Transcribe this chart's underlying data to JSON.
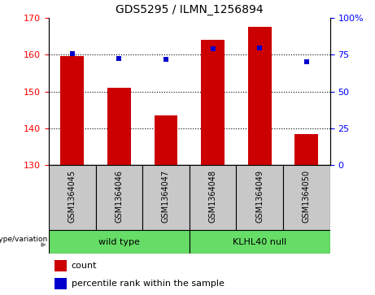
{
  "title": "GDS5295 / ILMN_1256894",
  "samples": [
    "GSM1364045",
    "GSM1364046",
    "GSM1364047",
    "GSM1364048",
    "GSM1364049",
    "GSM1364050"
  ],
  "counts": [
    159.5,
    151.0,
    143.5,
    164.0,
    167.5,
    138.5
  ],
  "percentiles": [
    75.5,
    72.5,
    72.0,
    79.0,
    79.5,
    70.0
  ],
  "ylim_left": [
    130,
    170
  ],
  "ylim_right": [
    0,
    100
  ],
  "yticks_left": [
    130,
    140,
    150,
    160,
    170
  ],
  "yticks_right": [
    0,
    25,
    50,
    75,
    100
  ],
  "bar_color": "#cc0000",
  "dot_color": "#0000cc",
  "bar_bottom": 130,
  "group_box_color": "#c8c8c8",
  "wild_type_label": "wild type",
  "klhl40_label": "KLHL40 null",
  "group_color": "#66dd66",
  "genotype_label": "genotype/variation",
  "legend_count_label": "count",
  "legend_percentile_label": "percentile rank within the sample",
  "title_fontsize": 10,
  "tick_fontsize": 8,
  "sample_fontsize": 7,
  "group_fontsize": 8,
  "legend_fontsize": 8
}
